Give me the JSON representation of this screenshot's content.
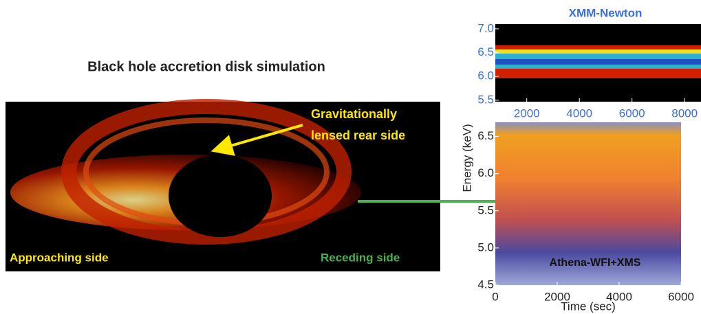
{
  "simulation": {
    "title": "Black hole accretion disk simulation",
    "rear_label_line1": "Gravitationally",
    "rear_label_line2": "lensed rear side",
    "approaching_label": "Approaching side",
    "receding_label": "Receding side"
  },
  "xmm_panel": {
    "title": "XMM-Newton",
    "xlim": [
      805,
      8623
    ],
    "ylim": [
      5.47,
      7.1
    ],
    "xticks": [
      2000,
      4000,
      6000,
      8000
    ],
    "yticks": [
      {
        "value": 7.0,
        "label": "7.0"
      },
      {
        "value": 6.5,
        "label": "6.5"
      },
      {
        "value": 6.0,
        "label": "6.0"
      },
      {
        "value": 5.5,
        "label": "5.5"
      }
    ]
  },
  "athena_panel": {
    "annotation": "Athena-WFI+XMS",
    "xlabel": "Time (sec)",
    "ylabel": "Energy (keV)",
    "xlim": [
      0,
      6000
    ],
    "ylim": [
      4.5,
      6.69
    ],
    "xticks": [
      0,
      2000,
      4000,
      6000
    ],
    "yticks": [
      {
        "value": 6.5,
        "label": "6.5"
      },
      {
        "value": 6.0,
        "label": "6.0"
      },
      {
        "value": 5.5,
        "label": "5.5"
      },
      {
        "value": 5.0,
        "label": "5.0"
      },
      {
        "value": 4.5,
        "label": "4.5"
      }
    ]
  }
}
